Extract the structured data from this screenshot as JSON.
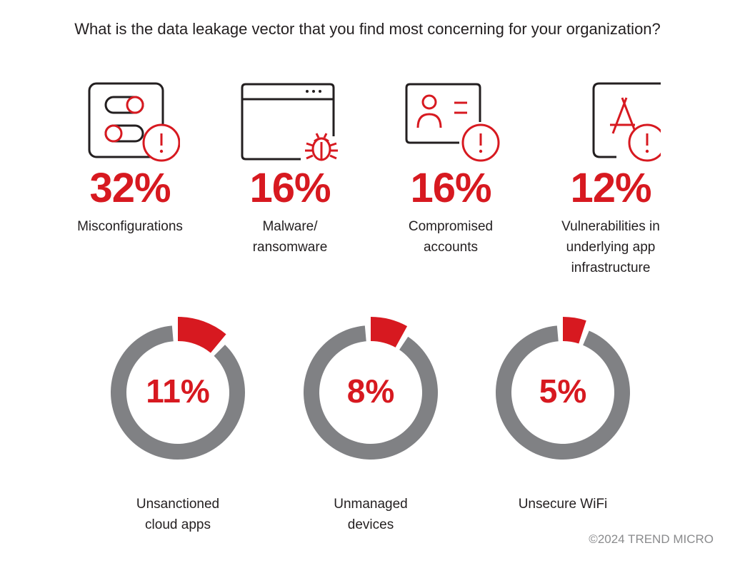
{
  "title": "What is the data leakage vector that you find most concerning for your organization?",
  "footer": "©2024 TREND MICRO",
  "colors": {
    "accent": "#d71920",
    "ring": "#808184",
    "icon_outline": "#231f20",
    "text": "#231f20",
    "footer": "#8a8b8d"
  },
  "chart_data": {
    "type": "bar",
    "title": "What is the data leakage vector that you find most concerning for your organization?",
    "unit": "%",
    "categories": [
      "Misconfigurations",
      "Malware/ ransomware",
      "Compromised accounts",
      "Vulnerabilities in underlying app infrastructure",
      "Unsanctioned cloud apps",
      "Unmanaged devices",
      "Unsecure WiFi"
    ],
    "values": [
      32,
      16,
      16,
      12,
      11,
      8,
      5
    ]
  },
  "stats": [
    {
      "icon": "toggle-settings-alert-icon",
      "value_text": "32%",
      "label": "Misconfigurations"
    },
    {
      "icon": "browser-bug-icon",
      "value_text": "16%",
      "label": "Malware/\nransomware"
    },
    {
      "icon": "user-card-alert-icon",
      "value_text": "16%",
      "label": "Compromised\naccounts"
    },
    {
      "icon": "app-store-alert-icon",
      "value_text": "12%",
      "label": "Vulnerabilities in\nunderlying app\ninfrastructure"
    }
  ],
  "donuts": [
    {
      "value": 11,
      "value_text": "11%",
      "label": "Unsanctioned\ncloud apps"
    },
    {
      "value": 8,
      "value_text": "8%",
      "label": "Unmanaged\ndevices"
    },
    {
      "value": 5,
      "value_text": "5%",
      "label": "Unsecure WiFi"
    }
  ]
}
